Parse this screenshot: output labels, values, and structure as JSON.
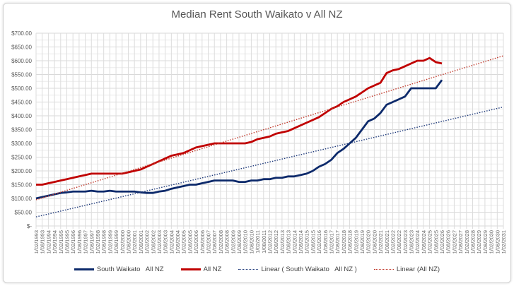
{
  "chart_data": {
    "type": "line",
    "title": "Median Rent South Waikato v All NZ",
    "xlabel": "",
    "ylabel": "",
    "ylim": [
      0,
      700
    ],
    "y_ticks": [
      0,
      50,
      100,
      150,
      200,
      250,
      300,
      350,
      400,
      450,
      500,
      550,
      600,
      650,
      700
    ],
    "y_tick_labels": [
      "$-",
      "$50.00",
      "$100.00",
      "$150.00",
      "$200.00",
      "$250.00",
      "$300.00",
      "$350.00",
      "$400.00",
      "$450.00",
      "$500.00",
      "$550.00",
      "$600.00",
      "$650.00",
      "$700.00"
    ],
    "xlim": [
      1993.083,
      2031.083
    ],
    "x_start": 1993.083,
    "x_step": 0.5,
    "grid": true,
    "legend_position": "bottom",
    "series": [
      {
        "name": "South Waikato   All NZ",
        "color": "#0d2a6b",
        "style": "solid",
        "values": [
          100,
          105,
          110,
          115,
          120,
          122,
          125,
          125,
          125,
          128,
          125,
          125,
          128,
          125,
          125,
          125,
          125,
          122,
          120,
          120,
          125,
          128,
          135,
          140,
          145,
          150,
          150,
          155,
          160,
          165,
          165,
          165,
          165,
          160,
          160,
          165,
          165,
          170,
          170,
          175,
          175,
          180,
          180,
          185,
          190,
          200,
          215,
          225,
          240,
          265,
          280,
          300,
          320,
          350,
          380,
          390,
          410,
          440,
          450,
          460,
          470,
          500,
          500,
          500,
          500,
          500,
          530
        ]
      },
      {
        "name": "All NZ",
        "color": "#c00000",
        "style": "solid",
        "values": [
          150,
          150,
          155,
          160,
          165,
          170,
          175,
          180,
          185,
          190,
          190,
          190,
          190,
          190,
          190,
          195,
          200,
          205,
          215,
          225,
          235,
          245,
          255,
          260,
          265,
          275,
          285,
          290,
          295,
          300,
          300,
          300,
          300,
          300,
          300,
          305,
          315,
          320,
          325,
          335,
          340,
          345,
          355,
          365,
          375,
          385,
          395,
          410,
          425,
          435,
          450,
          460,
          470,
          485,
          500,
          510,
          520,
          555,
          565,
          570,
          580,
          590,
          600,
          600,
          610,
          595,
          590
        ]
      },
      {
        "name": "Linear ( South Waikato   All NZ )",
        "color": "#1f3a7a",
        "style": "dotted",
        "trend": [
          [
            1993.083,
            33
          ],
          [
            2031.083,
            432
          ]
        ]
      },
      {
        "name": "Linear (All NZ)",
        "color": "#c0392b",
        "style": "dotted",
        "trend": [
          [
            1993.083,
            95
          ],
          [
            2031.083,
            618
          ]
        ]
      }
    ]
  }
}
